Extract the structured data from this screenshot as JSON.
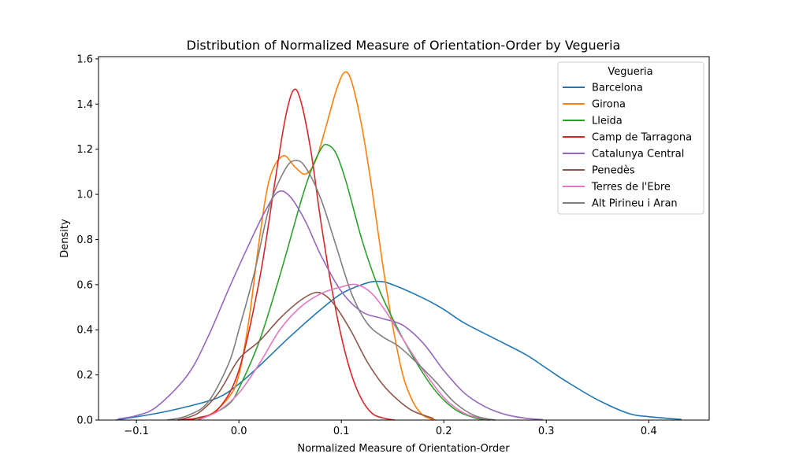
{
  "chart_data": {
    "type": "line",
    "title": "Distribution of Normalized Measure of Orientation-Order by Vegueria",
    "xlabel": "Normalized Measure of Orientation-Order",
    "ylabel": "Density",
    "xlim": [
      -0.137,
      0.459
    ],
    "ylim": [
      0,
      1.61
    ],
    "xticks": [
      -0.1,
      0.0,
      0.1,
      0.2,
      0.3,
      0.4
    ],
    "xtick_labels": [
      "−0.1",
      "0.0",
      "0.1",
      "0.2",
      "0.3",
      "0.4"
    ],
    "yticks": [
      0.0,
      0.2,
      0.4,
      0.6,
      0.8,
      1.0,
      1.2,
      1.4,
      1.6
    ],
    "ytick_labels": [
      "0.0",
      "0.2",
      "0.4",
      "0.6",
      "0.8",
      "1.0",
      "1.2",
      "1.4",
      "1.6"
    ],
    "grid": false,
    "legend": {
      "title": "Vegueria",
      "position": "top-right"
    },
    "series": [
      {
        "name": "Barcelona",
        "color": "#1f77b4",
        "points": [
          [
            -0.12,
            0.0
          ],
          [
            -0.08,
            0.03
          ],
          [
            -0.05,
            0.06
          ],
          [
            -0.02,
            0.1
          ],
          [
            0.0,
            0.16
          ],
          [
            0.02,
            0.24
          ],
          [
            0.05,
            0.37
          ],
          [
            0.08,
            0.49
          ],
          [
            0.1,
            0.56
          ],
          [
            0.12,
            0.6
          ],
          [
            0.135,
            0.615
          ],
          [
            0.15,
            0.6
          ],
          [
            0.18,
            0.54
          ],
          [
            0.2,
            0.49
          ],
          [
            0.22,
            0.43
          ],
          [
            0.25,
            0.36
          ],
          [
            0.28,
            0.29
          ],
          [
            0.3,
            0.23
          ],
          [
            0.32,
            0.17
          ],
          [
            0.35,
            0.09
          ],
          [
            0.38,
            0.03
          ],
          [
            0.4,
            0.015
          ],
          [
            0.432,
            0.003
          ]
        ]
      },
      {
        "name": "Girona",
        "color": "#ff7f0e",
        "points": [
          [
            -0.055,
            0.0
          ],
          [
            -0.03,
            0.02
          ],
          [
            -0.01,
            0.1
          ],
          [
            0.0,
            0.2
          ],
          [
            0.01,
            0.45
          ],
          [
            0.02,
            0.8
          ],
          [
            0.03,
            1.07
          ],
          [
            0.043,
            1.17
          ],
          [
            0.055,
            1.12
          ],
          [
            0.065,
            1.09
          ],
          [
            0.075,
            1.15
          ],
          [
            0.085,
            1.3
          ],
          [
            0.095,
            1.46
          ],
          [
            0.103,
            1.54
          ],
          [
            0.11,
            1.5
          ],
          [
            0.12,
            1.3
          ],
          [
            0.13,
            1.02
          ],
          [
            0.14,
            0.7
          ],
          [
            0.15,
            0.42
          ],
          [
            0.16,
            0.2
          ],
          [
            0.17,
            0.08
          ],
          [
            0.18,
            0.02
          ],
          [
            0.192,
            0.0
          ]
        ]
      },
      {
        "name": "Lleida",
        "color": "#2ca02c",
        "points": [
          [
            -0.05,
            0.0
          ],
          [
            -0.03,
            0.02
          ],
          [
            -0.01,
            0.07
          ],
          [
            0.0,
            0.14
          ],
          [
            0.02,
            0.35
          ],
          [
            0.04,
            0.64
          ],
          [
            0.06,
            0.96
          ],
          [
            0.07,
            1.1
          ],
          [
            0.08,
            1.2
          ],
          [
            0.086,
            1.22
          ],
          [
            0.095,
            1.18
          ],
          [
            0.105,
            1.05
          ],
          [
            0.12,
            0.8
          ],
          [
            0.135,
            0.6
          ],
          [
            0.15,
            0.45
          ],
          [
            0.17,
            0.28
          ],
          [
            0.19,
            0.14
          ],
          [
            0.21,
            0.05
          ],
          [
            0.23,
            0.01
          ],
          [
            0.245,
            0.0
          ]
        ]
      },
      {
        "name": "Camp de Tarragona",
        "color": "#d62728",
        "points": [
          [
            -0.06,
            0.0
          ],
          [
            -0.04,
            0.01
          ],
          [
            -0.02,
            0.05
          ],
          [
            0.0,
            0.22
          ],
          [
            0.02,
            0.62
          ],
          [
            0.035,
            1.05
          ],
          [
            0.045,
            1.33
          ],
          [
            0.053,
            1.46
          ],
          [
            0.06,
            1.42
          ],
          [
            0.07,
            1.2
          ],
          [
            0.08,
            0.88
          ],
          [
            0.09,
            0.6
          ],
          [
            0.1,
            0.37
          ],
          [
            0.11,
            0.2
          ],
          [
            0.12,
            0.09
          ],
          [
            0.13,
            0.03
          ],
          [
            0.14,
            0.01
          ],
          [
            0.152,
            0.0
          ]
        ]
      },
      {
        "name": "Catalunya Central",
        "color": "#9467bd",
        "points": [
          [
            -0.118,
            0.005
          ],
          [
            -0.1,
            0.02
          ],
          [
            -0.08,
            0.06
          ],
          [
            -0.05,
            0.2
          ],
          [
            -0.03,
            0.37
          ],
          [
            -0.01,
            0.58
          ],
          [
            0.01,
            0.78
          ],
          [
            0.025,
            0.92
          ],
          [
            0.038,
            1.01
          ],
          [
            0.05,
            0.99
          ],
          [
            0.065,
            0.88
          ],
          [
            0.08,
            0.73
          ],
          [
            0.1,
            0.57
          ],
          [
            0.12,
            0.48
          ],
          [
            0.14,
            0.45
          ],
          [
            0.16,
            0.42
          ],
          [
            0.18,
            0.34
          ],
          [
            0.2,
            0.22
          ],
          [
            0.22,
            0.12
          ],
          [
            0.24,
            0.06
          ],
          [
            0.26,
            0.025
          ],
          [
            0.28,
            0.008
          ],
          [
            0.297,
            0.002
          ]
        ]
      },
      {
        "name": "Penedès",
        "color": "#8c564b",
        "points": [
          [
            -0.06,
            0.0
          ],
          [
            -0.04,
            0.03
          ],
          [
            -0.02,
            0.12
          ],
          [
            0.0,
            0.27
          ],
          [
            0.02,
            0.35
          ],
          [
            0.04,
            0.45
          ],
          [
            0.06,
            0.53
          ],
          [
            0.075,
            0.565
          ],
          [
            0.085,
            0.55
          ],
          [
            0.095,
            0.5
          ],
          [
            0.11,
            0.39
          ],
          [
            0.125,
            0.26
          ],
          [
            0.14,
            0.16
          ],
          [
            0.155,
            0.09
          ],
          [
            0.17,
            0.04
          ],
          [
            0.19,
            0.007
          ]
        ]
      },
      {
        "name": "Terres de l'Ebre",
        "color": "#e377c2",
        "points": [
          [
            -0.04,
            0.0
          ],
          [
            -0.02,
            0.04
          ],
          [
            0.0,
            0.12
          ],
          [
            0.02,
            0.25
          ],
          [
            0.04,
            0.4
          ],
          [
            0.06,
            0.5
          ],
          [
            0.08,
            0.56
          ],
          [
            0.1,
            0.59
          ],
          [
            0.115,
            0.6
          ],
          [
            0.13,
            0.56
          ],
          [
            0.145,
            0.47
          ],
          [
            0.16,
            0.36
          ],
          [
            0.18,
            0.22
          ],
          [
            0.2,
            0.1
          ],
          [
            0.22,
            0.03
          ],
          [
            0.24,
            0.005
          ],
          [
            0.25,
            0.0
          ]
        ]
      },
      {
        "name": "Alt Pirineu i Aran",
        "color": "#7f7f7f",
        "points": [
          [
            -0.07,
            0.0
          ],
          [
            -0.05,
            0.02
          ],
          [
            -0.03,
            0.08
          ],
          [
            -0.01,
            0.25
          ],
          [
            0.0,
            0.4
          ],
          [
            0.015,
            0.65
          ],
          [
            0.03,
            0.95
          ],
          [
            0.045,
            1.11
          ],
          [
            0.055,
            1.15
          ],
          [
            0.065,
            1.12
          ],
          [
            0.08,
            0.98
          ],
          [
            0.095,
            0.77
          ],
          [
            0.11,
            0.56
          ],
          [
            0.125,
            0.43
          ],
          [
            0.14,
            0.37
          ],
          [
            0.155,
            0.33
          ],
          [
            0.17,
            0.27
          ],
          [
            0.19,
            0.18
          ],
          [
            0.21,
            0.08
          ],
          [
            0.23,
            0.02
          ],
          [
            0.25,
            0.0
          ]
        ]
      }
    ]
  }
}
